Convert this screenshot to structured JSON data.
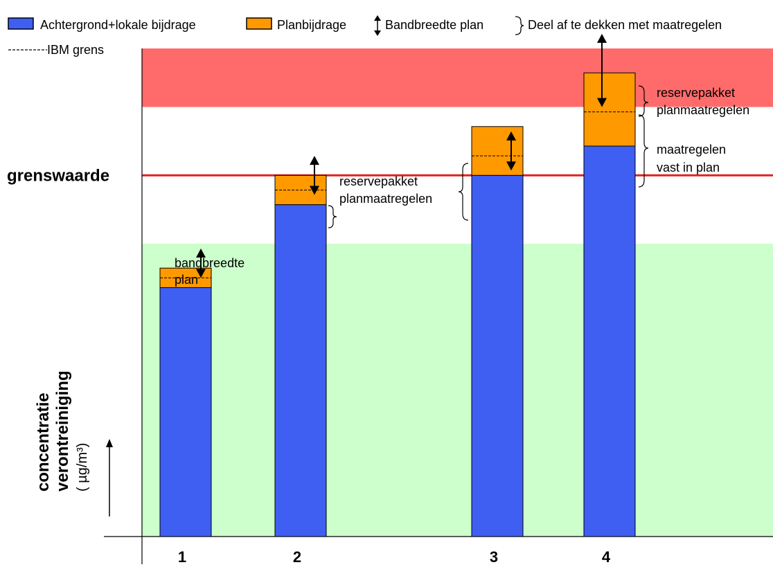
{
  "legend": {
    "items": [
      {
        "label": "Achtergrond+lokale bijdrage",
        "color": "#3f5ff2"
      },
      {
        "label": "Planbijdrage",
        "color": "#ff9900"
      },
      {
        "label": "Bandbreedte plan",
        "icon": "double-arrow-icon"
      },
      {
        "label": "Deel af te dekken met maatregelen",
        "icon": "brace-icon"
      }
    ],
    "ibm_label": "IBM grens"
  },
  "zones": {
    "red": "#ff6b6b",
    "white": "#ffffff",
    "green": "#ccffcc"
  },
  "limit": {
    "label": "grenswaarde",
    "color": "#e02020"
  },
  "annotations": {
    "bandbreedte_line1": "bandbreedte",
    "bandbreedte_line2": "plan",
    "reserve2_line1": "reservepakket",
    "reserve2_line2": "planmaatregelen",
    "reserve4_line1": "reservepakket",
    "reserve4_line2": "planmaatregelen",
    "vast_line1": "maatregelen",
    "vast_line2": "vast in plan"
  },
  "chart_data": {
    "type": "bar",
    "categories": [
      "1",
      "2",
      "3",
      "4"
    ],
    "series": [
      {
        "name": "Achtergrond+lokale bijdrage",
        "values": [
          51,
          68,
          74,
          80
        ]
      },
      {
        "name": "Planbijdrage",
        "values": [
          4,
          6,
          10,
          15
        ]
      }
    ],
    "ibm_limit": [
      53,
      71,
      78,
      87
    ],
    "bandwidth": [
      [
        53,
        59
      ],
      [
        70,
        78
      ],
      [
        75,
        83
      ],
      [
        88,
        103
      ]
    ],
    "limit_value": 74,
    "zones": {
      "green_below": 60,
      "red_above": 88
    },
    "ylim": [
      0,
      100
    ],
    "ylabel": [
      "concentratie",
      "verontreiniging",
      "( µg/m³)"
    ]
  }
}
